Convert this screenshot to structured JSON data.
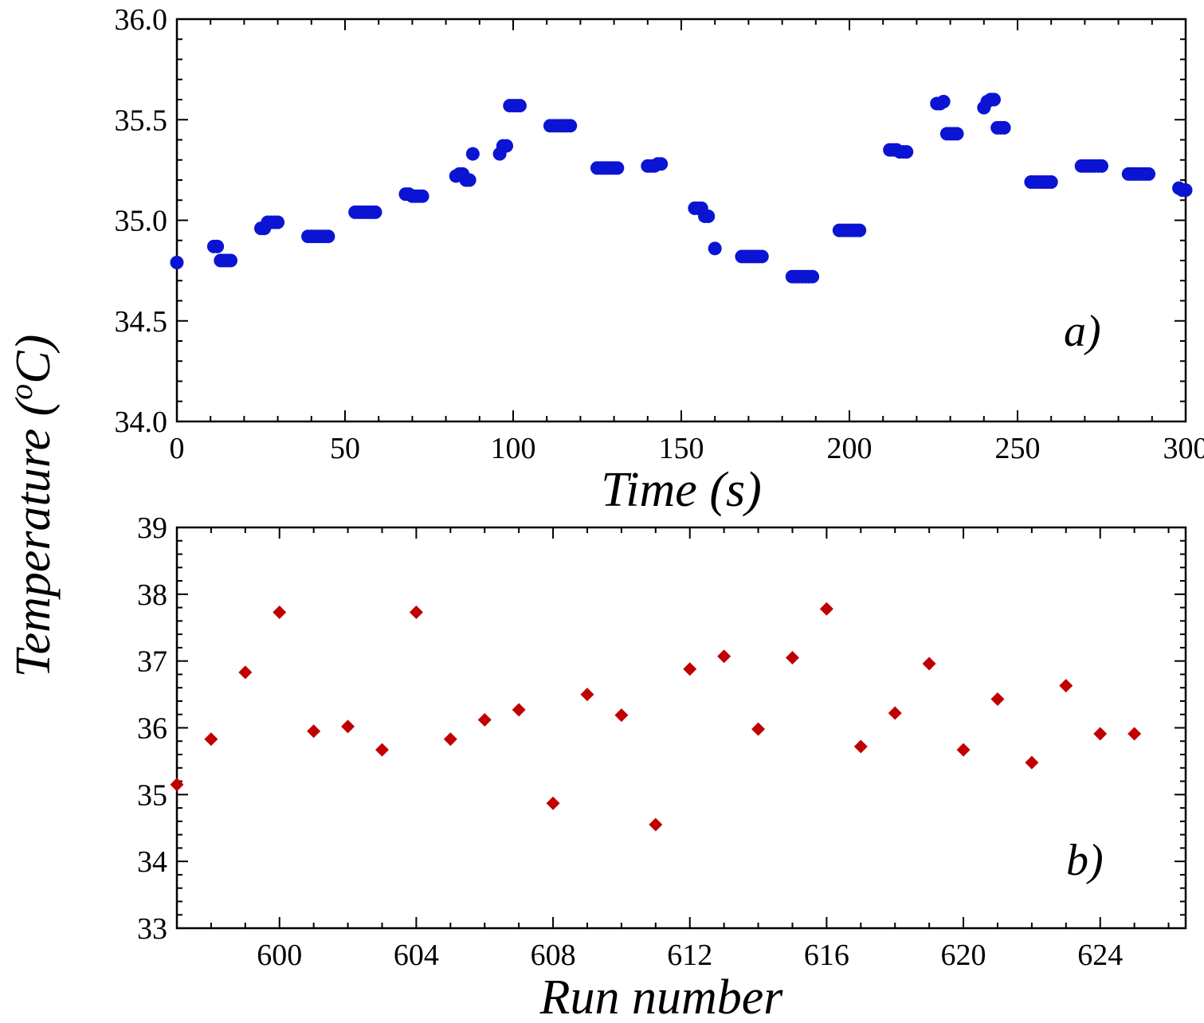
{
  "figure": {
    "ylabel": "Temperature (",
    "ylabel_sup": "o",
    "ylabel_tail": "C)"
  },
  "chart_data": [
    {
      "type": "scatter",
      "panel_label": "a)",
      "xlabel": "Time (s)",
      "ylabel": "Temperature (oC)",
      "xlim": [
        0,
        300
      ],
      "ylim": [
        34.0,
        36.0
      ],
      "xticks": [
        0,
        50,
        100,
        150,
        200,
        250,
        300
      ],
      "xtick_labels": [
        "0",
        "50",
        "100",
        "150",
        "200",
        "250",
        "300"
      ],
      "yticks": [
        34.0,
        34.5,
        35.0,
        35.5,
        36.0
      ],
      "ytick_labels": [
        "34.0",
        "34.5",
        "35.0",
        "35.5",
        "36.0"
      ],
      "marker": "circle",
      "color": "#0a14d2",
      "points": [
        [
          0,
          34.79
        ],
        [
          11,
          34.87
        ],
        [
          12,
          34.87
        ],
        [
          13,
          34.8
        ],
        [
          14,
          34.8
        ],
        [
          15,
          34.8
        ],
        [
          16,
          34.8
        ],
        [
          25,
          34.96
        ],
        [
          26,
          34.96
        ],
        [
          27,
          34.99
        ],
        [
          28,
          34.99
        ],
        [
          29,
          34.99
        ],
        [
          30,
          34.99
        ],
        [
          39,
          34.92
        ],
        [
          40,
          34.92
        ],
        [
          41,
          34.92
        ],
        [
          42,
          34.92
        ],
        [
          43,
          34.92
        ],
        [
          44,
          34.92
        ],
        [
          45,
          34.92
        ],
        [
          53,
          35.04
        ],
        [
          54,
          35.04
        ],
        [
          55,
          35.04
        ],
        [
          56,
          35.04
        ],
        [
          57,
          35.04
        ],
        [
          58,
          35.04
        ],
        [
          59,
          35.04
        ],
        [
          68,
          35.13
        ],
        [
          69,
          35.13
        ],
        [
          70,
          35.12
        ],
        [
          71,
          35.12
        ],
        [
          72,
          35.12
        ],
        [
          73,
          35.12
        ],
        [
          83,
          35.22
        ],
        [
          84,
          35.23
        ],
        [
          85,
          35.23
        ],
        [
          86,
          35.2
        ],
        [
          87,
          35.2
        ],
        [
          88,
          35.33
        ],
        [
          96,
          35.33
        ],
        [
          97,
          35.37
        ],
        [
          98,
          35.37
        ],
        [
          99,
          35.57
        ],
        [
          100,
          35.57
        ],
        [
          101,
          35.57
        ],
        [
          102,
          35.57
        ],
        [
          111,
          35.47
        ],
        [
          112,
          35.47
        ],
        [
          113,
          35.47
        ],
        [
          114,
          35.47
        ],
        [
          115,
          35.47
        ],
        [
          116,
          35.47
        ],
        [
          117,
          35.47
        ],
        [
          125,
          35.26
        ],
        [
          126,
          35.26
        ],
        [
          127,
          35.26
        ],
        [
          128,
          35.26
        ],
        [
          129,
          35.26
        ],
        [
          130,
          35.26
        ],
        [
          131,
          35.26
        ],
        [
          140,
          35.27
        ],
        [
          141,
          35.27
        ],
        [
          142,
          35.27
        ],
        [
          143,
          35.28
        ],
        [
          144,
          35.28
        ],
        [
          154,
          35.06
        ],
        [
          155,
          35.06
        ],
        [
          156,
          35.06
        ],
        [
          157,
          35.02
        ],
        [
          158,
          35.02
        ],
        [
          160,
          34.86
        ],
        [
          168,
          34.82
        ],
        [
          169,
          34.82
        ],
        [
          170,
          34.82
        ],
        [
          171,
          34.82
        ],
        [
          172,
          34.82
        ],
        [
          173,
          34.82
        ],
        [
          174,
          34.82
        ],
        [
          183,
          34.72
        ],
        [
          184,
          34.72
        ],
        [
          185,
          34.72
        ],
        [
          186,
          34.72
        ],
        [
          187,
          34.72
        ],
        [
          188,
          34.72
        ],
        [
          189,
          34.72
        ],
        [
          197,
          34.95
        ],
        [
          198,
          34.95
        ],
        [
          199,
          34.95
        ],
        [
          200,
          34.95
        ],
        [
          201,
          34.95
        ],
        [
          202,
          34.95
        ],
        [
          203,
          34.95
        ],
        [
          212,
          35.35
        ],
        [
          213,
          35.35
        ],
        [
          214,
          35.35
        ],
        [
          215,
          35.34
        ],
        [
          216,
          35.34
        ],
        [
          217,
          35.34
        ],
        [
          226,
          35.58
        ],
        [
          227,
          35.58
        ],
        [
          228,
          35.59
        ],
        [
          229,
          35.43
        ],
        [
          230,
          35.43
        ],
        [
          231,
          35.43
        ],
        [
          232,
          35.43
        ],
        [
          240,
          35.56
        ],
        [
          241,
          35.59
        ],
        [
          242,
          35.6
        ],
        [
          243,
          35.6
        ],
        [
          244,
          35.46
        ],
        [
          245,
          35.46
        ],
        [
          246,
          35.46
        ],
        [
          254,
          35.19
        ],
        [
          255,
          35.19
        ],
        [
          256,
          35.19
        ],
        [
          257,
          35.19
        ],
        [
          258,
          35.19
        ],
        [
          259,
          35.19
        ],
        [
          260,
          35.19
        ],
        [
          269,
          35.27
        ],
        [
          270,
          35.27
        ],
        [
          271,
          35.27
        ],
        [
          272,
          35.27
        ],
        [
          273,
          35.27
        ],
        [
          274,
          35.27
        ],
        [
          275,
          35.27
        ],
        [
          283,
          35.23
        ],
        [
          284,
          35.23
        ],
        [
          285,
          35.23
        ],
        [
          286,
          35.23
        ],
        [
          287,
          35.23
        ],
        [
          288,
          35.23
        ],
        [
          289,
          35.23
        ],
        [
          298,
          35.16
        ],
        [
          299,
          35.15
        ],
        [
          300,
          35.15
        ]
      ]
    },
    {
      "type": "scatter",
      "panel_label": "b)",
      "xlabel": "Run number",
      "ylabel": "Temperature (oC)",
      "xlim": [
        597,
        626.5
      ],
      "ylim": [
        33,
        39
      ],
      "xticks": [
        600,
        604,
        608,
        612,
        616,
        620,
        624
      ],
      "xtick_labels": [
        "600",
        "604",
        "608",
        "612",
        "616",
        "620",
        "624"
      ],
      "minor_xticks": [
        598,
        599,
        601,
        602,
        603,
        605,
        606,
        607,
        609,
        610,
        611,
        613,
        614,
        615,
        617,
        618,
        619,
        621,
        622,
        623,
        625,
        626
      ],
      "yticks": [
        33,
        34,
        35,
        36,
        37,
        38,
        39
      ],
      "ytick_labels": [
        "33",
        "34",
        "35",
        "36",
        "37",
        "38",
        "39"
      ],
      "marker": "diamond",
      "color": "#c00000",
      "points": [
        [
          597,
          35.15
        ],
        [
          598,
          35.83
        ],
        [
          599,
          36.83
        ],
        [
          600,
          37.73
        ],
        [
          601,
          35.95
        ],
        [
          602,
          36.02
        ],
        [
          603,
          35.67
        ],
        [
          604,
          37.73
        ],
        [
          605,
          35.83
        ],
        [
          606,
          36.12
        ],
        [
          607,
          36.27
        ],
        [
          608,
          34.87
        ],
        [
          609,
          36.5
        ],
        [
          610,
          36.19
        ],
        [
          611,
          34.55
        ],
        [
          612,
          36.88
        ],
        [
          613,
          37.07
        ],
        [
          614,
          35.98
        ],
        [
          615,
          37.05
        ],
        [
          616,
          37.78
        ],
        [
          617,
          35.72
        ],
        [
          618,
          36.22
        ],
        [
          619,
          36.96
        ],
        [
          620,
          35.67
        ],
        [
          621,
          36.43
        ],
        [
          622,
          35.48
        ],
        [
          623,
          36.63
        ],
        [
          624,
          35.91
        ],
        [
          625,
          35.91
        ]
      ]
    }
  ]
}
